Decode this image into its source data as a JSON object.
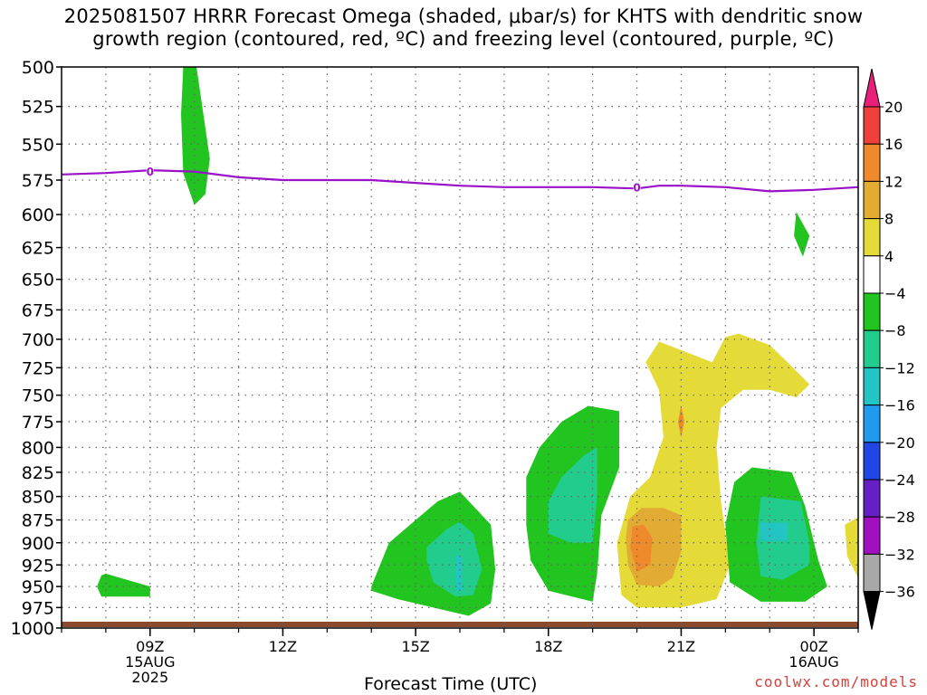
{
  "chart_data": {
    "type": "heatmap",
    "title_lines": [
      "2025081507 HRRR Forecast Omega (shaded, μbar/s) for KHTS with dendritic snow",
      "growth region (contoured, red, ºC) and freezing level (contoured, purple, ºC)"
    ],
    "xlabel": "Forecast Time (UTC)",
    "credit": "coolwx.com/models",
    "x_range_hours": [
      7,
      25
    ],
    "y_range_hpa": [
      500,
      1000
    ],
    "y_scale": "pressure (log)",
    "grid": "dotted",
    "y_ticks": [
      500,
      525,
      550,
      575,
      600,
      625,
      650,
      675,
      700,
      725,
      750,
      775,
      800,
      825,
      850,
      875,
      900,
      925,
      950,
      975,
      1000
    ],
    "x_ticks": [
      {
        "hour": 9,
        "lines": [
          "09Z",
          "15AUG",
          "2025"
        ]
      },
      {
        "hour": 12,
        "lines": [
          "12Z"
        ]
      },
      {
        "hour": 15,
        "lines": [
          "15Z"
        ]
      },
      {
        "hour": 18,
        "lines": [
          "18Z"
        ]
      },
      {
        "hour": 21,
        "lines": [
          "21Z"
        ]
      },
      {
        "hour": 24,
        "lines": [
          "00Z",
          "16AUG"
        ]
      }
    ],
    "colorbar": {
      "labels": [
        "20",
        "16",
        "12",
        "8",
        "4",
        "-4",
        "-8",
        "-12",
        "-16",
        "-20",
        "-24",
        "-28",
        "-32",
        "-36"
      ],
      "colors": [
        "#e8207a",
        "#f0403c",
        "#ee8a2c",
        "#e2ac34",
        "#e4da38",
        "#ffffff",
        "#22c420",
        "#22cc8c",
        "#22c4c4",
        "#209aee",
        "#2046e4",
        "#6420c4",
        "#a010c0",
        "#a8a8a8",
        "#000000"
      ]
    },
    "freezing_level": {
      "label": "0",
      "label_points": [
        {
          "hour": 9,
          "hpa": 569
        },
        {
          "hour": 20,
          "hpa": 580
        }
      ],
      "points": [
        [
          7,
          571
        ],
        [
          8,
          570
        ],
        [
          9,
          568
        ],
        [
          10,
          569
        ],
        [
          11,
          573
        ],
        [
          12,
          575
        ],
        [
          13,
          575
        ],
        [
          14,
          575
        ],
        [
          15,
          577
        ],
        [
          16,
          579
        ],
        [
          17,
          580
        ],
        [
          18,
          580
        ],
        [
          19,
          580
        ],
        [
          20,
          581
        ],
        [
          20.5,
          579
        ],
        [
          21,
          579
        ],
        [
          22,
          580
        ],
        [
          23,
          583
        ],
        [
          24,
          582
        ],
        [
          25,
          580
        ]
      ]
    },
    "shaded_regions": [
      {
        "level": "-8 to -4",
        "color": "#22c420",
        "points": [
          [
            8.0,
            935
          ],
          [
            9.0,
            950
          ],
          [
            9.0,
            962
          ],
          [
            7.9,
            962
          ],
          [
            7.8,
            950
          ],
          [
            7.9,
            937
          ]
        ]
      },
      {
        "level": "-8 to -4",
        "color": "#22c420",
        "points": [
          [
            9.75,
            500
          ],
          [
            10.05,
            500
          ],
          [
            10.35,
            560
          ],
          [
            10.25,
            585
          ],
          [
            10.0,
            593
          ],
          [
            9.75,
            570
          ],
          [
            9.7,
            530
          ]
        ]
      },
      {
        "level": "-8 to -4",
        "color": "#22c420",
        "points": [
          [
            23.6,
            598
          ],
          [
            23.9,
            616
          ],
          [
            23.75,
            632
          ],
          [
            23.55,
            616
          ]
        ]
      },
      {
        "level": "-8 to -4",
        "color": "#22c420",
        "points": [
          [
            14.0,
            950
          ],
          [
            14.4,
            900
          ],
          [
            15.0,
            875
          ],
          [
            15.5,
            855
          ],
          [
            16.0,
            845
          ],
          [
            16.7,
            880
          ],
          [
            16.8,
            930
          ],
          [
            16.7,
            970
          ],
          [
            16.2,
            985
          ],
          [
            15.4,
            975
          ],
          [
            14.6,
            965
          ],
          [
            14.0,
            955
          ]
        ]
      },
      {
        "level": "-12 to -8",
        "color": "#22cc8c",
        "points": [
          [
            15.25,
            905
          ],
          [
            15.7,
            885
          ],
          [
            16.0,
            877
          ],
          [
            16.3,
            890
          ],
          [
            16.5,
            930
          ],
          [
            16.3,
            960
          ],
          [
            15.9,
            962
          ],
          [
            15.4,
            945
          ],
          [
            15.25,
            920
          ]
        ]
      },
      {
        "level": "-16 to -12",
        "color": "#22c4c4",
        "points": [
          [
            15.9,
            915
          ],
          [
            16.05,
            915
          ],
          [
            16.05,
            955
          ],
          [
            15.9,
            955
          ]
        ]
      },
      {
        "level": "-8 to -4",
        "color": "#22c420",
        "points": [
          [
            17.5,
            830
          ],
          [
            17.8,
            800
          ],
          [
            18.3,
            775
          ],
          [
            18.9,
            760
          ],
          [
            19.6,
            765
          ],
          [
            19.6,
            820
          ],
          [
            19.2,
            870
          ],
          [
            19.1,
            935
          ],
          [
            19.0,
            968
          ],
          [
            18.0,
            955
          ],
          [
            17.6,
            920
          ],
          [
            17.5,
            880
          ]
        ]
      },
      {
        "level": "-12 to -8",
        "color": "#22cc8c",
        "points": [
          [
            18.0,
            855
          ],
          [
            18.3,
            830
          ],
          [
            18.8,
            808
          ],
          [
            19.1,
            800
          ],
          [
            19.1,
            850
          ],
          [
            19.0,
            900
          ],
          [
            18.5,
            900
          ],
          [
            18.0,
            890
          ]
        ]
      },
      {
        "level": "4 to 8",
        "color": "#e4da38",
        "points": [
          [
            21.7,
            720
          ],
          [
            22.0,
            698
          ],
          [
            22.3,
            695
          ],
          [
            23.0,
            705
          ],
          [
            23.4,
            720
          ],
          [
            23.9,
            740
          ],
          [
            23.6,
            752
          ],
          [
            23.0,
            745
          ],
          [
            22.4,
            745
          ],
          [
            21.9,
            762
          ],
          [
            21.8,
            800
          ],
          [
            21.9,
            855
          ],
          [
            22.1,
            925
          ],
          [
            21.8,
            965
          ],
          [
            21.0,
            975
          ],
          [
            20.0,
            975
          ],
          [
            19.65,
            960
          ],
          [
            19.55,
            900
          ],
          [
            19.85,
            850
          ],
          [
            20.3,
            830
          ],
          [
            20.6,
            790
          ],
          [
            20.5,
            745
          ],
          [
            20.2,
            720
          ],
          [
            20.5,
            702
          ]
        ]
      },
      {
        "level": "8 to 12",
        "color": "#e2ac34",
        "points": [
          [
            19.8,
            875
          ],
          [
            20.1,
            862
          ],
          [
            20.6,
            862
          ],
          [
            21.0,
            870
          ],
          [
            21.0,
            910
          ],
          [
            20.8,
            940
          ],
          [
            20.5,
            950
          ],
          [
            20.0,
            948
          ],
          [
            19.8,
            925
          ],
          [
            19.75,
            895
          ]
        ]
      },
      {
        "level": "12 to 16",
        "color": "#ee8a2c",
        "points": [
          [
            19.9,
            882
          ],
          [
            20.15,
            880
          ],
          [
            20.35,
            895
          ],
          [
            20.3,
            925
          ],
          [
            20.0,
            933
          ],
          [
            19.85,
            905
          ]
        ]
      },
      {
        "level": "12 to 16",
        "color": "#ee8a2c",
        "points": [
          [
            21.0,
            760
          ],
          [
            21.07,
            775
          ],
          [
            21.0,
            790
          ],
          [
            20.93,
            775
          ]
        ]
      },
      {
        "level": "-8 to -4",
        "color": "#22c420",
        "points": [
          [
            22.2,
            835
          ],
          [
            22.6,
            820
          ],
          [
            23.5,
            825
          ],
          [
            23.8,
            860
          ],
          [
            24.1,
            920
          ],
          [
            24.3,
            950
          ],
          [
            23.8,
            968
          ],
          [
            22.8,
            968
          ],
          [
            22.1,
            945
          ],
          [
            22.0,
            880
          ]
        ]
      },
      {
        "level": "-12 to -8",
        "color": "#22cc8c",
        "points": [
          [
            22.8,
            850
          ],
          [
            23.7,
            855
          ],
          [
            23.9,
            900
          ],
          [
            23.9,
            925
          ],
          [
            23.3,
            942
          ],
          [
            22.8,
            938
          ],
          [
            22.7,
            900
          ]
        ]
      },
      {
        "level": "-16 to -12",
        "color": "#22c4c4",
        "points": [
          [
            22.8,
            878
          ],
          [
            23.4,
            878
          ],
          [
            23.4,
            898
          ],
          [
            22.8,
            898
          ]
        ]
      },
      {
        "level": "4 to 8",
        "color": "#e4da38",
        "points": [
          [
            24.7,
            880
          ],
          [
            25.0,
            872
          ],
          [
            25.0,
            940
          ],
          [
            24.75,
            915
          ]
        ]
      }
    ]
  }
}
